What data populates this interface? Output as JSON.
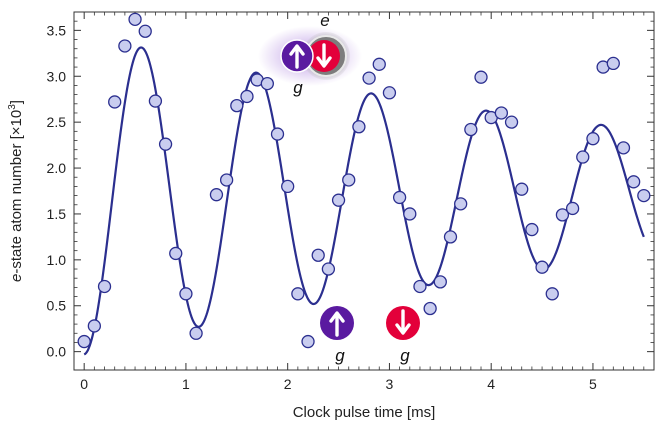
{
  "chart_data": {
    "type": "scatter",
    "xlabel": "Clock pulse time [ms]",
    "ylabel_italic": "e",
    "ylabel_rest": "-state atom number [×10",
    "ylabel_sup": "3",
    "ylabel_close": "]",
    "xlim": [
      -0.1,
      5.6
    ],
    "ylim": [
      -0.2,
      3.7
    ],
    "xticks": [
      "0",
      "1",
      "2",
      "3",
      "4",
      "5"
    ],
    "yticks": [
      "0.0",
      "0.5",
      "1.0",
      "1.5",
      "2.0",
      "2.5",
      "3.0",
      "3.5"
    ],
    "series": [
      {
        "kind": "points",
        "color": "#c9cdef",
        "stroke": "#2b2f8f",
        "x": [
          0.0,
          0.1,
          0.2,
          0.3,
          0.4,
          0.5,
          0.6,
          0.7,
          0.8,
          0.9,
          1.0,
          1.1,
          1.3,
          1.4,
          1.5,
          1.6,
          1.7,
          1.8,
          1.9,
          2.0,
          2.1,
          2.2,
          2.3,
          2.4,
          2.5,
          2.6,
          2.7,
          2.8,
          2.9,
          3.0,
          3.1,
          3.2,
          3.3,
          3.4,
          3.5,
          3.6,
          3.7,
          3.8,
          3.9,
          4.0,
          4.1,
          4.2,
          4.3,
          4.4,
          4.5,
          4.6,
          4.7,
          4.8,
          4.9,
          5.0,
          5.1,
          5.2,
          5.3,
          5.4,
          5.5
        ],
        "y": [
          0.11,
          0.28,
          0.71,
          2.72,
          3.33,
          3.62,
          3.49,
          2.73,
          2.26,
          1.07,
          0.63,
          0.2,
          1.71,
          1.87,
          2.68,
          2.78,
          2.96,
          2.92,
          2.37,
          1.8,
          0.63,
          0.11,
          1.05,
          0.9,
          1.65,
          1.87,
          2.45,
          2.98,
          3.13,
          2.82,
          1.68,
          1.5,
          0.71,
          0.47,
          0.76,
          1.25,
          1.61,
          2.42,
          2.99,
          2.55,
          2.6,
          2.5,
          1.77,
          1.33,
          0.92,
          0.63,
          1.49,
          1.56,
          2.12,
          2.32,
          3.1,
          3.14,
          2.22,
          1.85,
          1.7
        ]
      },
      {
        "kind": "fit",
        "color": "#2b2f8f",
        "model": {
          "offset": 1.72,
          "amp0": 1.75,
          "decay_ms": 6.0,
          "period_ms": 1.13,
          "phase": 3.14159
        }
      }
    ],
    "annotations": {
      "top_pair_top_label": "e",
      "top_pair_bottom_label": "g",
      "ground_up_label": "g",
      "ground_down_label": "g",
      "purple": "#5a1aa0",
      "red": "#e3003a"
    }
  }
}
